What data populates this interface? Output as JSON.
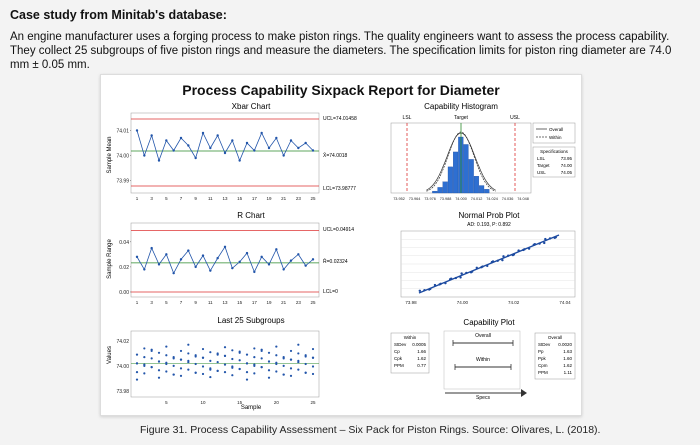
{
  "heading": "Case study from Minitab's database:",
  "paragraph": "An engine manufacturer uses a forging process to make piston rings. The quality engineers want to assess the process capability. They collect 25 subgroups of five piston rings and measure the diameters. The specification limits for piston ring diameter are 74.0 mm ± 0.05 mm.",
  "figure": {
    "title": "Process Capability Sixpack Report for Diameter",
    "caption": "Figure 31. Process Capability Assessment – Six Pack for Piston Rings. Source: Olivares, L. (2018)."
  },
  "chart_data": [
    {
      "type": "line",
      "title": "Xbar Chart",
      "ylabel": "Sample Mean",
      "x": [
        1,
        2,
        3,
        4,
        5,
        6,
        7,
        8,
        9,
        10,
        11,
        12,
        13,
        14,
        15,
        16,
        17,
        18,
        19,
        20,
        21,
        22,
        23,
        24,
        25
      ],
      "series": [
        {
          "values": [
            74.01,
            74.0,
            74.008,
            73.998,
            74.006,
            74.002,
            74.007,
            74.004,
            73.999,
            74.009,
            74.003,
            74.008,
            74.001,
            74.006,
            73.998,
            74.005,
            74.002,
            74.009,
            74.003,
            74.007,
            74.0,
            74.006,
            74.003,
            74.005,
            74.002
          ]
        }
      ],
      "center_label": "X̄=74.0018",
      "ucl_label": "UCL=74.01458",
      "lcl_label": "LCL=73.98777",
      "ucl": 74.0146,
      "center": 74.0018,
      "lcl": 73.9878,
      "yticks": [
        "74.01",
        "74.00",
        "73.99"
      ],
      "xticks": [
        "1",
        "3",
        "5",
        "7",
        "9",
        "11",
        "13",
        "15",
        "17",
        "19",
        "21",
        "23",
        "25"
      ],
      "ylim": [
        73.985,
        74.017
      ]
    },
    {
      "type": "line",
      "title": "R Chart",
      "ylabel": "Sample Range",
      "x": [
        1,
        2,
        3,
        4,
        5,
        6,
        7,
        8,
        9,
        10,
        11,
        12,
        13,
        14,
        15,
        16,
        17,
        18,
        19,
        20,
        21,
        22,
        23,
        24,
        25
      ],
      "series": [
        {
          "values": [
            0.028,
            0.018,
            0.035,
            0.022,
            0.03,
            0.015,
            0.026,
            0.033,
            0.02,
            0.029,
            0.017,
            0.027,
            0.036,
            0.019,
            0.024,
            0.031,
            0.016,
            0.028,
            0.022,
            0.034,
            0.018,
            0.025,
            0.03,
            0.021,
            0.026
          ]
        }
      ],
      "center_label": "R̄=0.02324",
      "ucl_label": "UCL=0.04914",
      "lcl_label": "LCL=0",
      "ucl": 0.0491,
      "center": 0.0232,
      "lcl": 0,
      "yticks": [
        "0.04",
        "0.02",
        "0.00"
      ],
      "xticks": [
        "1",
        "3",
        "5",
        "7",
        "9",
        "11",
        "13",
        "15",
        "17",
        "19",
        "21",
        "23",
        "25"
      ],
      "ylim": [
        -0.004,
        0.055
      ]
    },
    {
      "type": "scatter",
      "title": "Last 25 Subgroups",
      "ylabel": "Values",
      "xlabel": "Sample",
      "yticks": [
        "74.02",
        "74.00",
        "73.98"
      ],
      "xticks": [
        "5",
        "10",
        "15",
        "20",
        "25"
      ]
    },
    {
      "type": "bar",
      "title": "Capability Histogram",
      "top_labels": [
        "LSL",
        "Target",
        "USL"
      ],
      "bin_labels": [
        "73.952",
        "73.964",
        "73.976",
        "73.988",
        "74.000",
        "74.012",
        "74.024",
        "74.036",
        "74.048"
      ],
      "values": [
        1,
        3,
        6,
        14,
        22,
        30,
        26,
        18,
        9,
        4,
        2
      ],
      "legend": [
        "Overall",
        "Within"
      ],
      "spec_box": {
        "heading": "Specifications",
        "rows": [
          [
            "LSL",
            "73.95"
          ],
          [
            "Target",
            "74.00"
          ],
          [
            "USL",
            "74.05"
          ]
        ]
      }
    },
    {
      "type": "scatter",
      "title": "Normal Prob Plot",
      "subtitle": "AD: 0.193, P: 0.892",
      "xticks": [
        "73.98",
        "74.00",
        "74.02",
        "74.04"
      ]
    },
    {
      "type": "table",
      "title": "Capability Plot",
      "within": {
        "heading": "Within",
        "rows": [
          [
            "StDev",
            "0.0005"
          ],
          [
            "Cp",
            "1.66"
          ],
          [
            "Cpk",
            "1.62"
          ],
          [
            "PPM",
            "0.77"
          ]
        ]
      },
      "overall": {
        "heading": "Overall",
        "rows": [
          [
            "StDev",
            "0.0020"
          ],
          [
            "Pp",
            "1.63"
          ],
          [
            "Ppk",
            "1.60"
          ],
          [
            "Cpm",
            "1.62"
          ],
          [
            "PPM",
            "1.11"
          ]
        ]
      },
      "bar_labels": [
        "Overall",
        "Within",
        "Specs"
      ]
    }
  ]
}
